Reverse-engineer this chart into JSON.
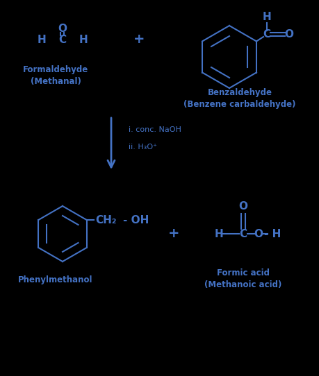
{
  "bg_color": "#000000",
  "mol_color": "#4472c4",
  "formaldehyde_label": "Formaldehyde\n(Methanal)",
  "benzaldehyde_label": "Benzaldehyde\n(Benzene carbaldehyde)",
  "phenylmethanol_label": "Phenylmethanol",
  "formic_acid_label": "Formic acid\n(Methanoic acid)",
  "condition1": "i. conc. NaOH",
  "condition2": "ii. H₃O⁺"
}
